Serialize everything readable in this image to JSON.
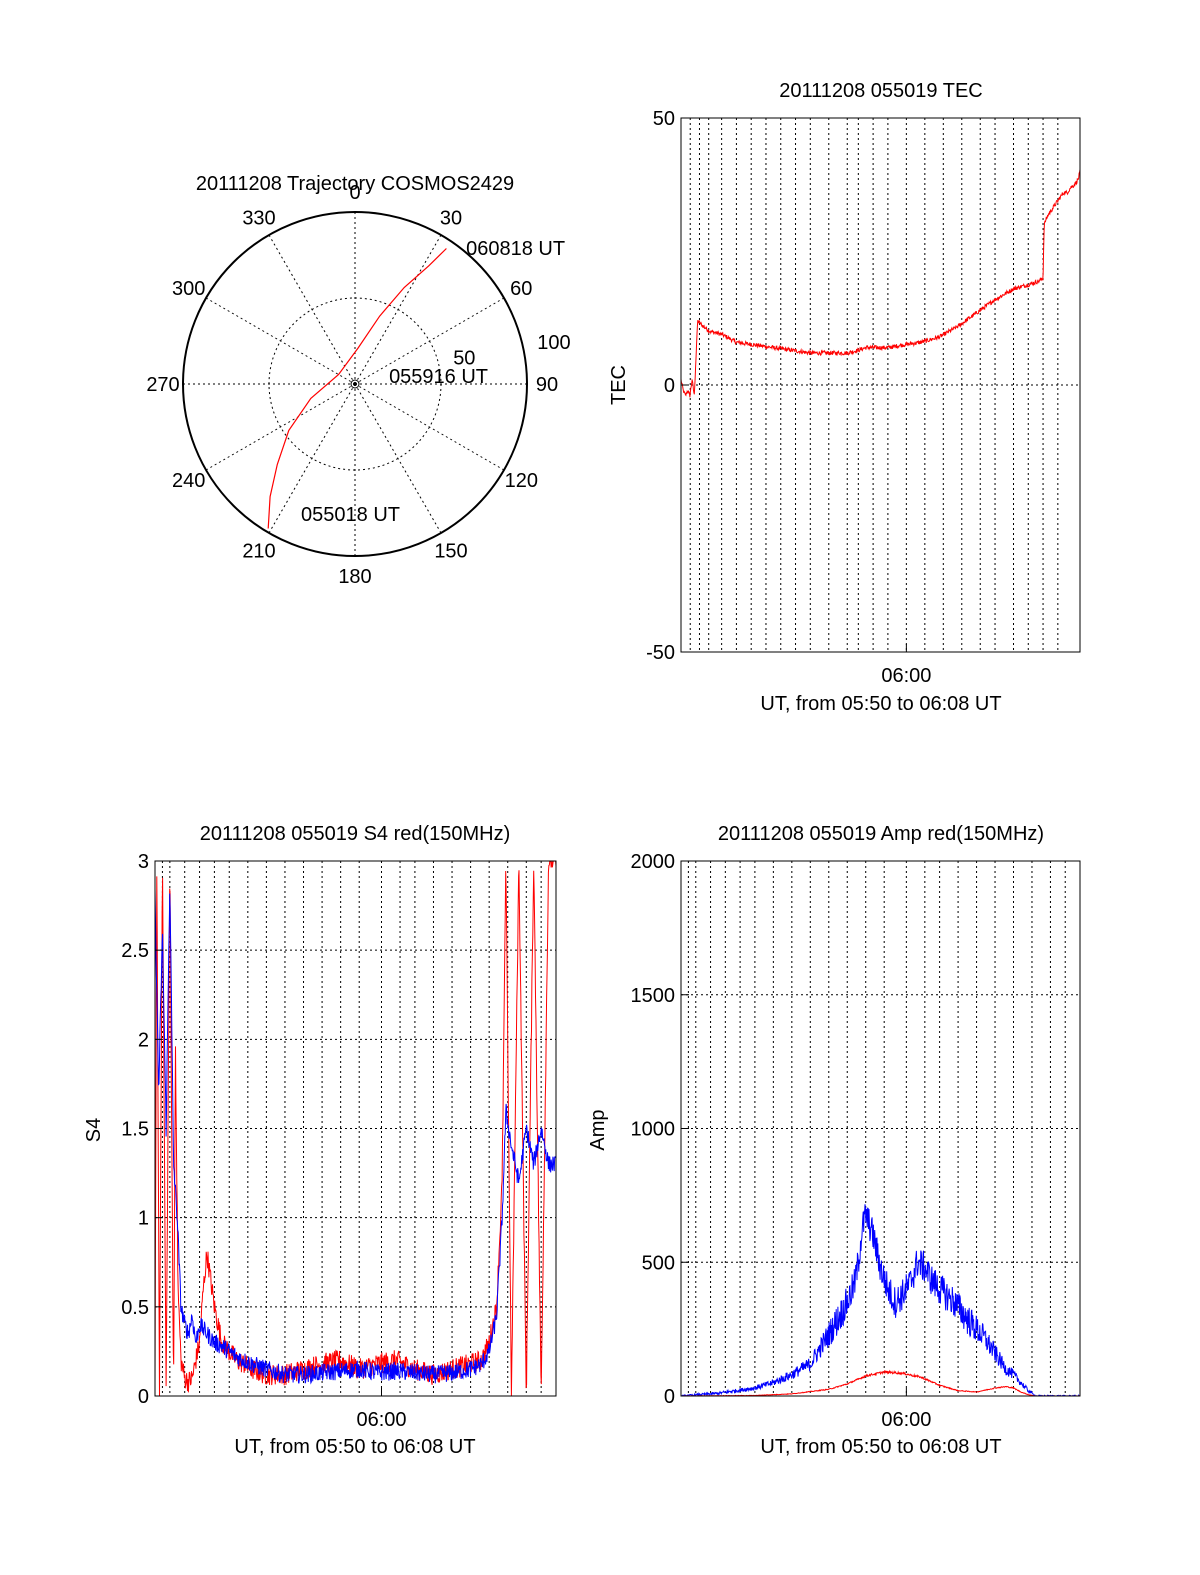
{
  "chart_data": [
    {
      "type": "polar",
      "title": "20111208 Trajectory COSMOS2429",
      "azimuth_labels": [
        "0",
        "30",
        "60",
        "90",
        "120",
        "150",
        "180",
        "210",
        "240",
        "270",
        "300",
        "330"
      ],
      "azimuths": [
        0,
        30,
        60,
        90,
        120,
        150,
        180,
        210,
        240,
        270,
        300,
        330
      ],
      "radial_labels": [
        "50",
        "100"
      ],
      "radial_values": [
        50,
        100
      ],
      "rmax": 100,
      "grid": true,
      "trajectory": {
        "color": "#ff0000",
        "points": [
          {
            "az": 211,
            "r": 98
          },
          {
            "az": 217,
            "r": 82
          },
          {
            "az": 224,
            "r": 65
          },
          {
            "az": 235,
            "r": 47
          },
          {
            "az": 252,
            "r": 27
          },
          {
            "az": 300,
            "r": 11
          },
          {
            "az": 5,
            "r": 21
          },
          {
            "az": 20,
            "r": 42
          },
          {
            "az": 27,
            "r": 63
          },
          {
            "az": 32,
            "r": 81
          },
          {
            "az": 34,
            "r": 95
          }
        ]
      },
      "annotations": [
        {
          "text": "060818 UT",
          "az": 36,
          "r": 100
        },
        {
          "text": "055916 UT",
          "az": 88,
          "r": 14
        },
        {
          "text": "055018 UT",
          "az": 205,
          "r": 88
        }
      ]
    },
    {
      "type": "line",
      "title": "20111208 055019 TEC",
      "xlabel": "UT, from 05:50 to 06:08 UT",
      "ylabel": "TEC",
      "xlim": [
        0,
        1080
      ],
      "ylim": [
        -50,
        50
      ],
      "xtick_labels": [
        "06:00"
      ],
      "xtick_values": [
        610
      ],
      "ytick_labels": [
        "50",
        "0",
        "-50"
      ],
      "ytick_values": [
        50,
        0,
        -50
      ],
      "xgrid_values": [
        25,
        50,
        75,
        110,
        150,
        190,
        230,
        270,
        310,
        350,
        400,
        450,
        480,
        520,
        560,
        610,
        660,
        710,
        760,
        810,
        850,
        900,
        940,
        980,
        1020
      ],
      "ygrid_values": [
        0
      ],
      "series": [
        {
          "color": "#ff0000",
          "x": [
            0,
            6,
            12,
            18,
            24,
            30,
            36,
            45,
            60,
            80,
            110,
            150,
            200,
            250,
            300,
            350,
            400,
            450,
            480,
            500,
            530,
            560,
            600,
            650,
            700,
            750,
            800,
            850,
            900,
            950,
            970,
            980,
            983,
            988,
            995,
            1005,
            1015,
            1025,
            1035,
            1045,
            1055,
            1065,
            1075,
            1080
          ],
          "y": [
            1,
            -1,
            -2,
            -1,
            -2,
            1,
            -2,
            12,
            11,
            10,
            9.5,
            8,
            7.5,
            7,
            6.5,
            6,
            6,
            6,
            6.5,
            7,
            7,
            7,
            7.5,
            8,
            9,
            11,
            13.5,
            16,
            18,
            19,
            19.5,
            20,
            30,
            31,
            32,
            33,
            34,
            35,
            36,
            36,
            37,
            37.5,
            38.5,
            40
          ]
        }
      ]
    },
    {
      "type": "line",
      "title": "20111208 055019 S4 red(150MHz)",
      "xlabel": "UT, from 05:50 to 06:08 UT",
      "ylabel": "S4",
      "xlim": [
        0,
        1080
      ],
      "ylim": [
        0,
        3
      ],
      "xtick_labels": [
        "06:00"
      ],
      "xtick_values": [
        610
      ],
      "ytick_labels": [
        "0",
        "0.5",
        "1",
        "1.5",
        "2",
        "2.5",
        "3"
      ],
      "ytick_values": [
        0,
        0.5,
        1,
        1.5,
        2,
        2.5,
        3
      ],
      "xgrid_values": [
        20,
        40,
        80,
        120,
        160,
        200,
        250,
        300,
        350,
        400,
        450,
        500,
        550,
        610,
        660,
        700,
        750,
        800,
        850,
        900,
        950,
        1000,
        1040
      ],
      "ygrid_values": [
        0.5,
        1,
        1.5,
        2,
        2.5
      ],
      "series": [
        {
          "color": "#ff0000",
          "x": [
            0,
            5,
            12,
            20,
            30,
            40,
            50,
            55,
            62,
            70,
            80,
            90,
            100,
            110,
            120,
            130,
            140,
            160,
            180,
            200,
            220,
            240,
            260,
            300,
            350,
            400,
            450,
            500,
            550,
            600,
            650,
            700,
            750,
            800,
            850,
            880,
            900,
            920,
            935,
            945,
            960,
            980,
            1000,
            1020,
            1040,
            1060,
            1080
          ],
          "y": [
            0,
            3,
            0,
            3,
            0,
            3,
            0,
            2,
            0.6,
            0.2,
            0.1,
            0.08,
            0.1,
            0.2,
            0.3,
            0.6,
            0.8,
            0.5,
            0.3,
            0.25,
            0.2,
            0.18,
            0.15,
            0.12,
            0.12,
            0.15,
            0.18,
            0.2,
            0.15,
            0.18,
            0.2,
            0.15,
            0.12,
            0.15,
            0.18,
            0.2,
            0.3,
            0.5,
            1.2,
            3,
            0,
            3,
            0,
            3,
            0,
            3,
            3
          ]
        },
        {
          "color": "#0000ff",
          "x": [
            0,
            10,
            20,
            30,
            40,
            50,
            60,
            70,
            80,
            90,
            100,
            110,
            120,
            140,
            160,
            180,
            200,
            220,
            240,
            260,
            300,
            350,
            400,
            450,
            500,
            550,
            600,
            650,
            700,
            750,
            800,
            850,
            880,
            900,
            920,
            935,
            945,
            960,
            980,
            1000,
            1020,
            1040,
            1060,
            1080
          ],
          "y": [
            2.8,
            1.7,
            2.6,
            1.5,
            2.9,
            1.3,
            1.0,
            0.5,
            0.4,
            0.35,
            0.45,
            0.3,
            0.4,
            0.35,
            0.3,
            0.28,
            0.25,
            0.22,
            0.2,
            0.18,
            0.15,
            0.12,
            0.12,
            0.13,
            0.14,
            0.15,
            0.13,
            0.14,
            0.13,
            0.12,
            0.13,
            0.15,
            0.18,
            0.25,
            0.45,
            1.0,
            1.6,
            1.4,
            1.2,
            1.5,
            1.3,
            1.5,
            1.3,
            1.3
          ]
        }
      ]
    },
    {
      "type": "line",
      "title": "20111208 055019 Amp red(150MHz)",
      "xlabel": "UT, from 05:50 to 06:08 UT",
      "ylabel": "Amp",
      "xlim": [
        0,
        1080
      ],
      "ylim": [
        0,
        2000
      ],
      "xtick_labels": [
        "06:00"
      ],
      "xtick_values": [
        610
      ],
      "ytick_labels": [
        "0",
        "500",
        "1000",
        "1500",
        "2000"
      ],
      "ytick_values": [
        0,
        500,
        1000,
        1500,
        2000
      ],
      "xgrid_values": [
        20,
        40,
        80,
        120,
        160,
        200,
        250,
        300,
        350,
        400,
        450,
        500,
        550,
        610,
        660,
        700,
        750,
        800,
        850,
        900,
        950,
        1000,
        1040
      ],
      "ygrid_values": [
        500,
        1000,
        1500
      ],
      "series": [
        {
          "color": "#0000ff",
          "x": [
            0,
            50,
            100,
            150,
            200,
            250,
            300,
            350,
            400,
            430,
            450,
            470,
            480,
            490,
            500,
            520,
            540,
            560,
            580,
            600,
            620,
            640,
            660,
            680,
            700,
            740,
            780,
            820,
            860,
            880,
            900,
            920,
            940,
            960,
            1080
          ],
          "y": [
            0,
            5,
            10,
            20,
            30,
            50,
            80,
            120,
            230,
            300,
            350,
            420,
            500,
            620,
            680,
            600,
            480,
            400,
            350,
            380,
            420,
            500,
            480,
            430,
            400,
            350,
            280,
            220,
            140,
            100,
            80,
            50,
            20,
            0,
            0
          ]
        },
        {
          "color": "#ff0000",
          "x": [
            0,
            200,
            300,
            400,
            450,
            500,
            550,
            600,
            650,
            700,
            750,
            800,
            850,
            880,
            900,
            920,
            940,
            960,
            1080
          ],
          "y": [
            0,
            2,
            8,
            25,
            45,
            75,
            90,
            85,
            70,
            40,
            20,
            15,
            30,
            35,
            30,
            15,
            5,
            0,
            0
          ]
        }
      ]
    }
  ]
}
